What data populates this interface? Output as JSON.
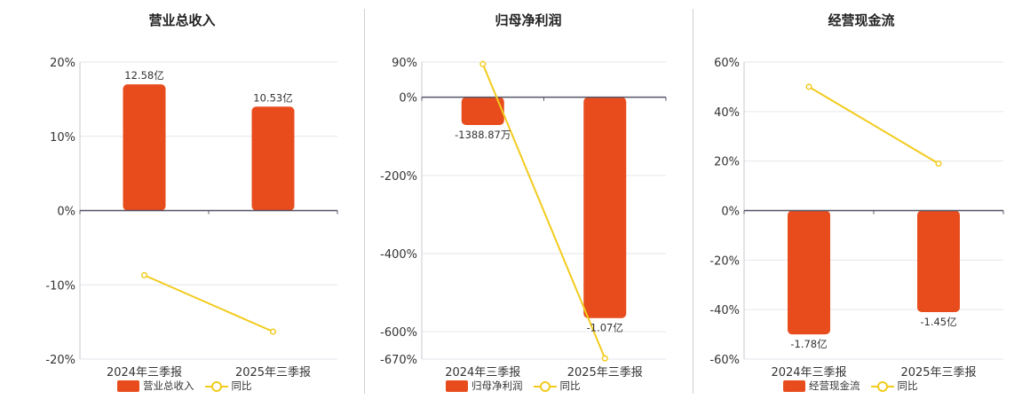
{
  "colors": {
    "bar": "#e84c1c",
    "line": "#f2cb1d",
    "axis": "#555566",
    "grid": "#e6e6ee"
  },
  "chart_data": [
    {
      "type": "bar",
      "title": "营业总收入",
      "categories": [
        "2024年三季报",
        "2025年三季报"
      ],
      "yticks": [
        20,
        10,
        0,
        -10,
        -20
      ],
      "ytick_labels": [
        "20%",
        "10%",
        "0%",
        "-10%",
        "-20%"
      ],
      "ylim": [
        -20,
        20
      ],
      "series": [
        {
          "name": "营业总收入",
          "kind": "bar",
          "values": [
            17,
            14
          ],
          "labels": [
            "12.58亿",
            "10.53亿"
          ],
          "label_pos": "above"
        },
        {
          "name": "同比",
          "kind": "line",
          "values": [
            -8.7,
            -16.3
          ]
        }
      ],
      "legend": [
        "营业总收入",
        "同比"
      ],
      "legend_placement": "bottom"
    },
    {
      "type": "bar",
      "title": "归母净利润",
      "categories": [
        "2024年三季报",
        "2025年三季报"
      ],
      "yticks": [
        90,
        0,
        -200,
        -400,
        -600,
        -670
      ],
      "ytick_labels": [
        "90%",
        "0%",
        "-200%",
        "-400%",
        "-600%",
        "-670%"
      ],
      "ylim": [
        -670,
        90
      ],
      "series": [
        {
          "name": "归母净利润",
          "kind": "bar",
          "values": [
            -71,
            -565
          ],
          "labels": [
            "-1388.87万",
            "-1.07亿"
          ],
          "label_pos": "below"
        },
        {
          "name": "同比",
          "kind": "line",
          "values": [
            85,
            -668
          ]
        }
      ],
      "legend": [
        "归母净利润",
        "同比"
      ],
      "legend_placement": "bottom"
    },
    {
      "type": "bar",
      "title": "经营现金流",
      "categories": [
        "2024年三季报",
        "2025年三季报"
      ],
      "yticks": [
        60,
        40,
        20,
        0,
        -20,
        -40,
        -60
      ],
      "ytick_labels": [
        "60%",
        "40%",
        "20%",
        "0%",
        "-20%",
        "-40%",
        "-60%"
      ],
      "ylim": [
        -60,
        60
      ],
      "series": [
        {
          "name": "经营现金流",
          "kind": "bar",
          "values": [
            -50,
            -41
          ],
          "labels": [
            "-1.78亿",
            "-1.45亿"
          ],
          "label_pos": "below"
        },
        {
          "name": "同比",
          "kind": "line",
          "values": [
            50,
            19
          ]
        }
      ],
      "legend": [
        "经营现金流",
        "同比"
      ],
      "legend_placement": "bottom"
    }
  ]
}
